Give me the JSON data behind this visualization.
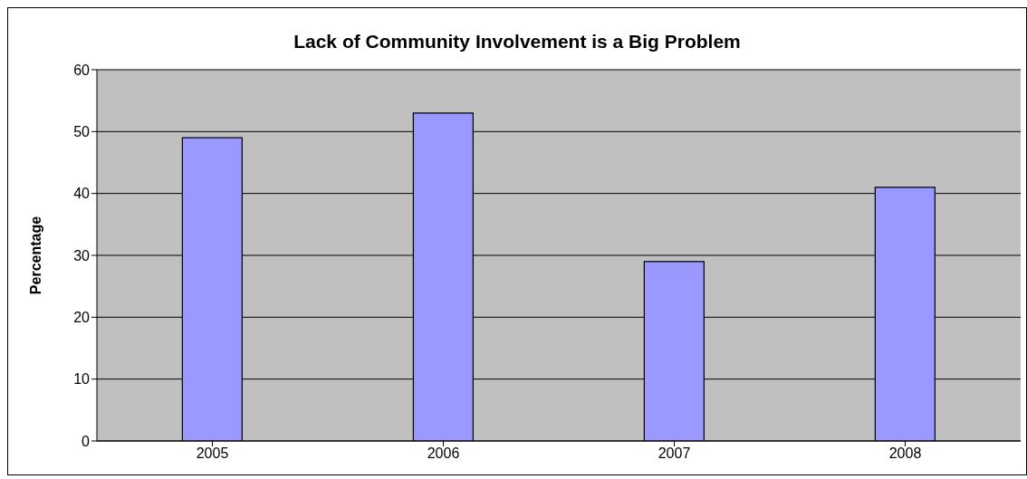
{
  "chart_data": {
    "type": "bar",
    "title": "Lack of Community Involvement is a Big Problem",
    "ylabel": "Percentage",
    "categories": [
      "2005",
      "2006",
      "2007",
      "2008"
    ],
    "values": [
      49,
      53,
      29,
      41
    ],
    "color": "#9999ff",
    "ylim": [
      0,
      60
    ],
    "yticks": [
      0,
      10,
      20,
      30,
      40,
      50,
      60
    ],
    "grid": "y"
  }
}
